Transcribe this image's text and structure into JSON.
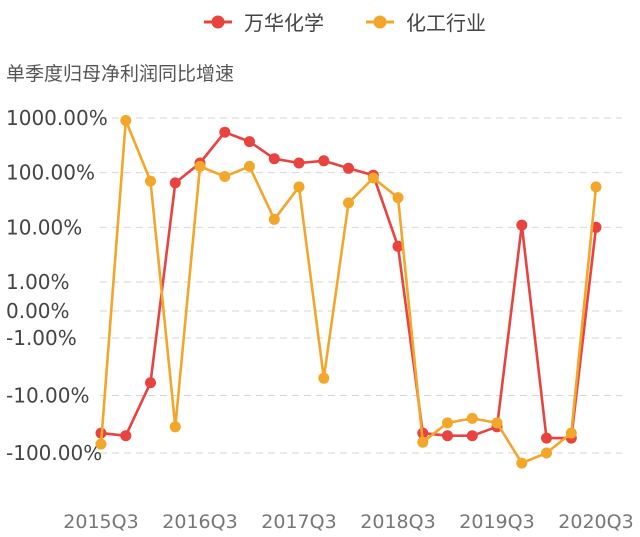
{
  "chart_data": {
    "type": "line",
    "subtitle": "单季度归母净利润同比增速",
    "y_scale": "symlog",
    "y_ticks": [
      1000,
      100,
      10,
      1,
      0,
      -1,
      -10,
      -100
    ],
    "y_tick_labels": [
      "1000.00%",
      "100.00%",
      "10.00%",
      "1.00%",
      "0.00%",
      "-1.00%",
      "-10.00%",
      "-100.00%"
    ],
    "x_tick_labels": [
      "2015Q3",
      "2016Q3",
      "2017Q3",
      "2018Q3",
      "2019Q3",
      "2020Q3"
    ],
    "x_tick_index": [
      0,
      4,
      8,
      12,
      16,
      20
    ],
    "categories": [
      "2015Q3",
      "2015Q4",
      "2016Q1",
      "2016Q2",
      "2016Q3",
      "2016Q4",
      "2017Q1",
      "2017Q2",
      "2017Q3",
      "2017Q4",
      "2018Q1",
      "2018Q2",
      "2018Q3",
      "2018Q4",
      "2019Q1",
      "2019Q2",
      "2019Q3",
      "2019Q4",
      "2020Q1",
      "2020Q2",
      "2020Q3"
    ],
    "grid": true,
    "legend_position": "top-center",
    "series": [
      {
        "name": "万华化学",
        "color": "#e8433f",
        "values": [
          -45,
          -50,
          -6,
          65,
          150,
          550,
          370,
          180,
          150,
          165,
          120,
          90,
          4.5,
          -45,
          -50,
          -50,
          -35,
          11,
          -55,
          -55,
          10
        ]
      },
      {
        "name": "化工行业",
        "color": "#f2a62a",
        "values": [
          -70,
          900,
          70,
          -35,
          130,
          85,
          130,
          14,
          55,
          -5,
          28,
          80,
          35,
          -65,
          -30,
          -25,
          -30,
          -150,
          -100,
          -45,
          55
        ]
      }
    ]
  }
}
